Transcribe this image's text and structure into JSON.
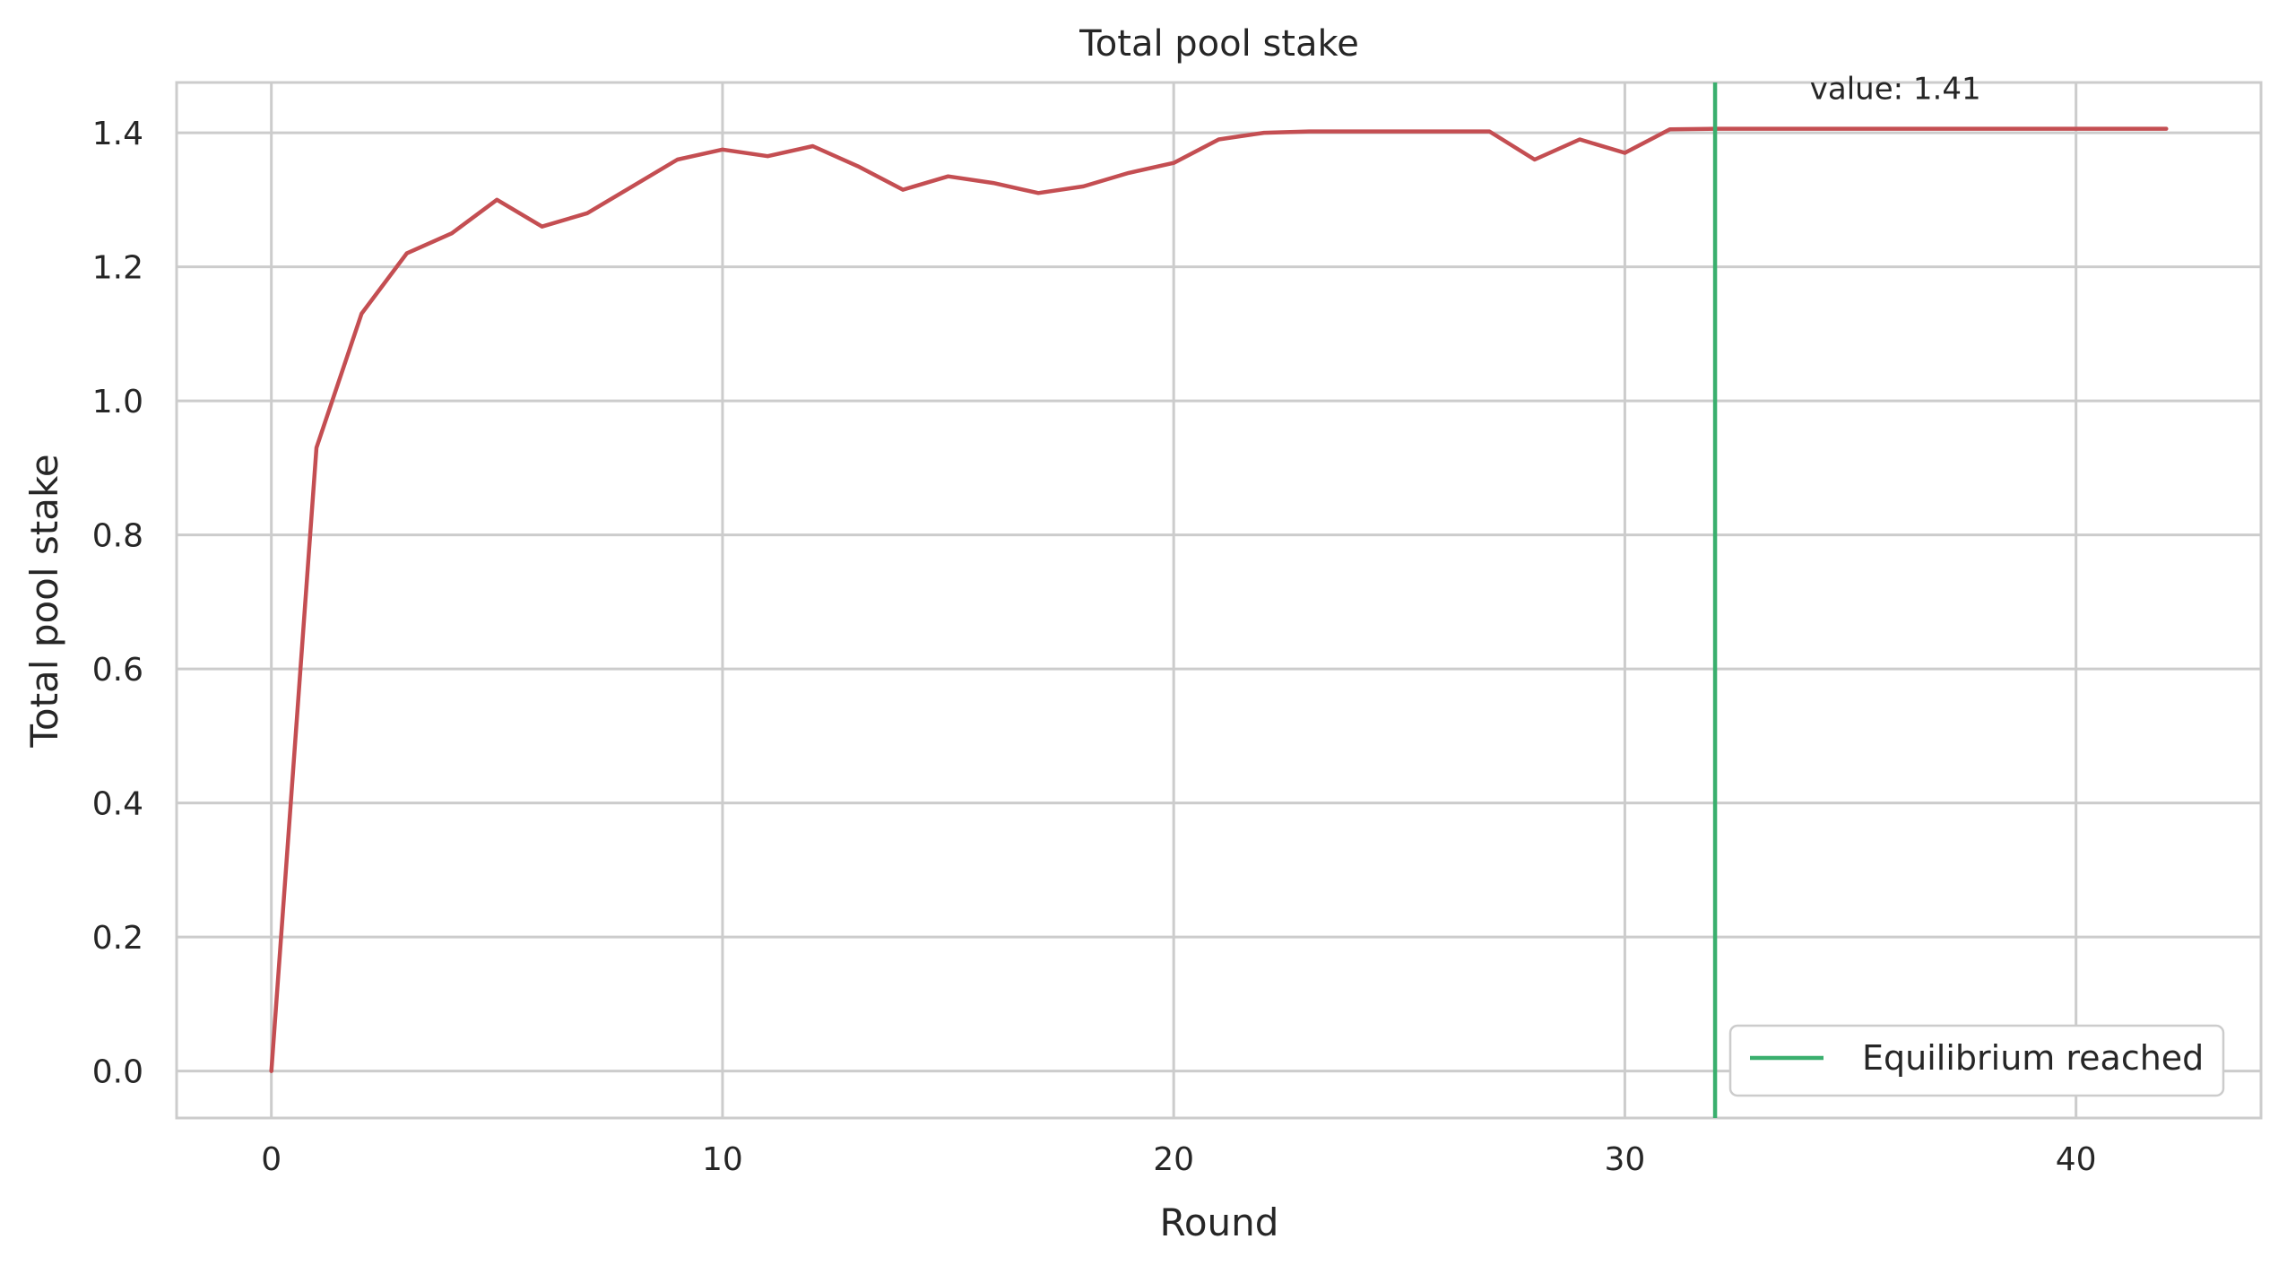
{
  "chart_data": {
    "type": "line",
    "title": "Total pool stake",
    "xlabel": "Round",
    "ylabel": "Total pool stake",
    "xlim": [
      -2.1,
      44.1
    ],
    "ylim": [
      -0.07,
      1.475
    ],
    "xticks": [
      0,
      10,
      20,
      30,
      40
    ],
    "xtick_labels": [
      "0",
      "10",
      "20",
      "30",
      "40"
    ],
    "yticks": [
      0.0,
      0.2,
      0.4,
      0.6,
      0.8,
      1.0,
      1.2,
      1.4
    ],
    "ytick_labels": [
      "0.0",
      "0.2",
      "0.4",
      "0.6",
      "0.8",
      "1.0",
      "1.2",
      "1.4"
    ],
    "grid": true,
    "series": [
      {
        "color": "#c44e52",
        "x": [
          0,
          1,
          2,
          3,
          4,
          5,
          6,
          7,
          8,
          9,
          10,
          11,
          12,
          13,
          14,
          15,
          16,
          17,
          18,
          19,
          20,
          21,
          22,
          23,
          24,
          25,
          26,
          27,
          28,
          29,
          30,
          31,
          32,
          33,
          34,
          35,
          36,
          37,
          38,
          39,
          40,
          41,
          42
        ],
        "y": [
          0.0,
          0.93,
          1.13,
          1.22,
          1.25,
          1.3,
          1.26,
          1.28,
          1.32,
          1.36,
          1.375,
          1.365,
          1.38,
          1.35,
          1.315,
          1.335,
          1.325,
          1.31,
          1.32,
          1.34,
          1.355,
          1.39,
          1.4,
          1.402,
          1.402,
          1.402,
          1.402,
          1.402,
          1.36,
          1.39,
          1.37,
          1.405,
          1.406,
          1.406,
          1.406,
          1.406,
          1.406,
          1.406,
          1.406,
          1.406,
          1.406,
          1.406,
          1.406
        ]
      }
    ],
    "vline": {
      "x": 32,
      "color": "#3aaf6e",
      "label": "Equilibrium reached"
    },
    "annotation": {
      "text": "value: 1.41",
      "x": 34.1,
      "y": 1.45
    },
    "legend": {
      "position": "lower-right",
      "entries": [
        "Equilibrium reached"
      ]
    }
  }
}
